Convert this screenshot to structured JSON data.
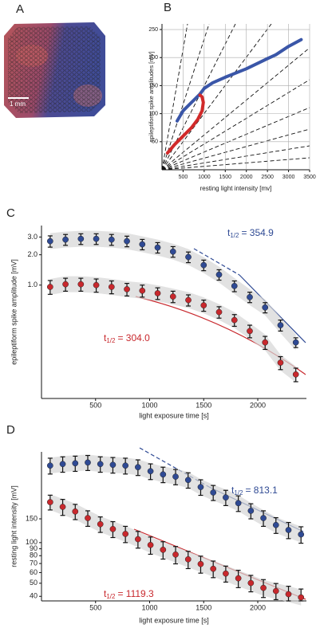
{
  "panel_a": {
    "label": "A",
    "scale_bar": "1 mm"
  },
  "chart_data": [
    {
      "type": "line",
      "panel_label": "B",
      "xlabel": "resting light intensity [mv]",
      "ylabel": "epileptiform spike amplitudes [mV]",
      "xlim": [
        0,
        3500
      ],
      "ylim": [
        0,
        260
      ],
      "xticks": [
        500,
        1000,
        1500,
        2000,
        2500,
        3000,
        3500
      ],
      "yticks": [
        50,
        100,
        150,
        200,
        250
      ],
      "grid": true,
      "series": [
        {
          "color": "#3a56a8",
          "x": [
            360,
            500,
            700,
            900,
            1000,
            1200,
            1500,
            2000,
            2500,
            2700,
            3000,
            3300
          ],
          "values": [
            87,
            105,
            120,
            135,
            145,
            155,
            165,
            180,
            198,
            205,
            220,
            232
          ]
        },
        {
          "color": "#d12a2a",
          "x": [
            130,
            300,
            500,
            700,
            850,
            950,
            980,
            950,
            900
          ],
          "values": [
            30,
            45,
            60,
            75,
            90,
            105,
            120,
            130,
            133
          ]
        }
      ]
    },
    {
      "type": "errorscatter",
      "panel_label": "C",
      "xlabel": "light exposure time [s]",
      "ylabel": "epileptiform spike amplitude [mV]",
      "log_scale": true,
      "xlim": [
        0,
        2450
      ],
      "ylim": [
        0.075,
        3.9
      ],
      "xticks": [
        500,
        1000,
        1500,
        2000
      ],
      "yticks": [
        {
          "value": 1,
          "label": "1.0"
        },
        {
          "value": 2,
          "label": "2.0"
        },
        {
          "value": 3,
          "label": "3.0"
        }
      ],
      "x": [
        80,
        222,
        364,
        506,
        648,
        790,
        932,
        1074,
        1216,
        1358,
        1500,
        1642,
        1784,
        1926,
        2068,
        2210,
        2352
      ],
      "series": [
        {
          "color": "#2f4a94",
          "annotation": [
            "t",
            "1/2",
            "= 354.9"
          ],
          "values": [
            2.73,
            2.83,
            2.88,
            2.88,
            2.83,
            2.73,
            2.54,
            2.36,
            2.15,
            1.9,
            1.58,
            1.27,
            0.98,
            0.76,
            0.6,
            0.4,
            0.27
          ],
          "errors": [
            0.35,
            0.35,
            0.35,
            0.35,
            0.35,
            0.33,
            0.3,
            0.28,
            0.26,
            0.23,
            0.19,
            0.15,
            0.12,
            0.09,
            0.07,
            0.05,
            0.03
          ]
        },
        {
          "color": "#c8282d",
          "annotation": [
            "t",
            "1/2",
            "= 304.0"
          ],
          "values": [
            0.96,
            1.02,
            1.02,
            1.0,
            0.96,
            0.91,
            0.88,
            0.83,
            0.77,
            0.71,
            0.63,
            0.54,
            0.45,
            0.35,
            0.27,
            0.17,
            0.13
          ],
          "errors": [
            0.15,
            0.15,
            0.15,
            0.15,
            0.14,
            0.13,
            0.12,
            0.11,
            0.1,
            0.09,
            0.08,
            0.07,
            0.06,
            0.05,
            0.04,
            0.025,
            0.02
          ]
        }
      ]
    },
    {
      "type": "errorscatter",
      "panel_label": "D",
      "xlabel": "light exposure time [s]",
      "ylabel": "resting light intensity [mV]",
      "log_scale": true,
      "xlim": [
        0,
        2450
      ],
      "ylim": [
        37,
        470
      ],
      "xticks": [
        500,
        1000,
        1500,
        2000
      ],
      "yticks": [
        40,
        50,
        60,
        70,
        80,
        90,
        100,
        150
      ],
      "x": [
        80,
        196,
        312,
        428,
        544,
        660,
        776,
        892,
        1008,
        1124,
        1240,
        1356,
        1472,
        1588,
        1704,
        1820,
        1936,
        2052,
        2168,
        2284,
        2400
      ],
      "series": [
        {
          "color": "#2f4a94",
          "annotation": [
            "t",
            "1/2",
            "= 813.1"
          ],
          "values": [
            372,
            382,
            387,
            392,
            382,
            377,
            372,
            362,
            338,
            320,
            308,
            291,
            258,
            235,
            216,
            196,
            172,
            152,
            135,
            124,
            115
          ],
          "errors": [
            50,
            50,
            50,
            50,
            50,
            50,
            50,
            48,
            45,
            42,
            40,
            38,
            34,
            30,
            28,
            26,
            22,
            20,
            18,
            17,
            16
          ]
        },
        {
          "color": "#c8282d",
          "annotation": [
            "t",
            "1/2",
            "= 1119.3"
          ],
          "values": [
            199.5,
            184,
            170,
            152,
            137,
            126,
            116,
            106,
            96,
            88.5,
            81.6,
            75.2,
            69.4,
            64,
            59,
            54.4,
            50.2,
            46.2,
            43.8,
            41.5,
            39.3
          ],
          "errors": [
            25,
            25,
            22,
            20,
            18,
            17,
            16,
            15,
            14,
            13,
            12,
            11,
            10,
            9,
            8,
            8,
            7,
            7,
            6,
            6,
            6
          ]
        }
      ]
    }
  ]
}
